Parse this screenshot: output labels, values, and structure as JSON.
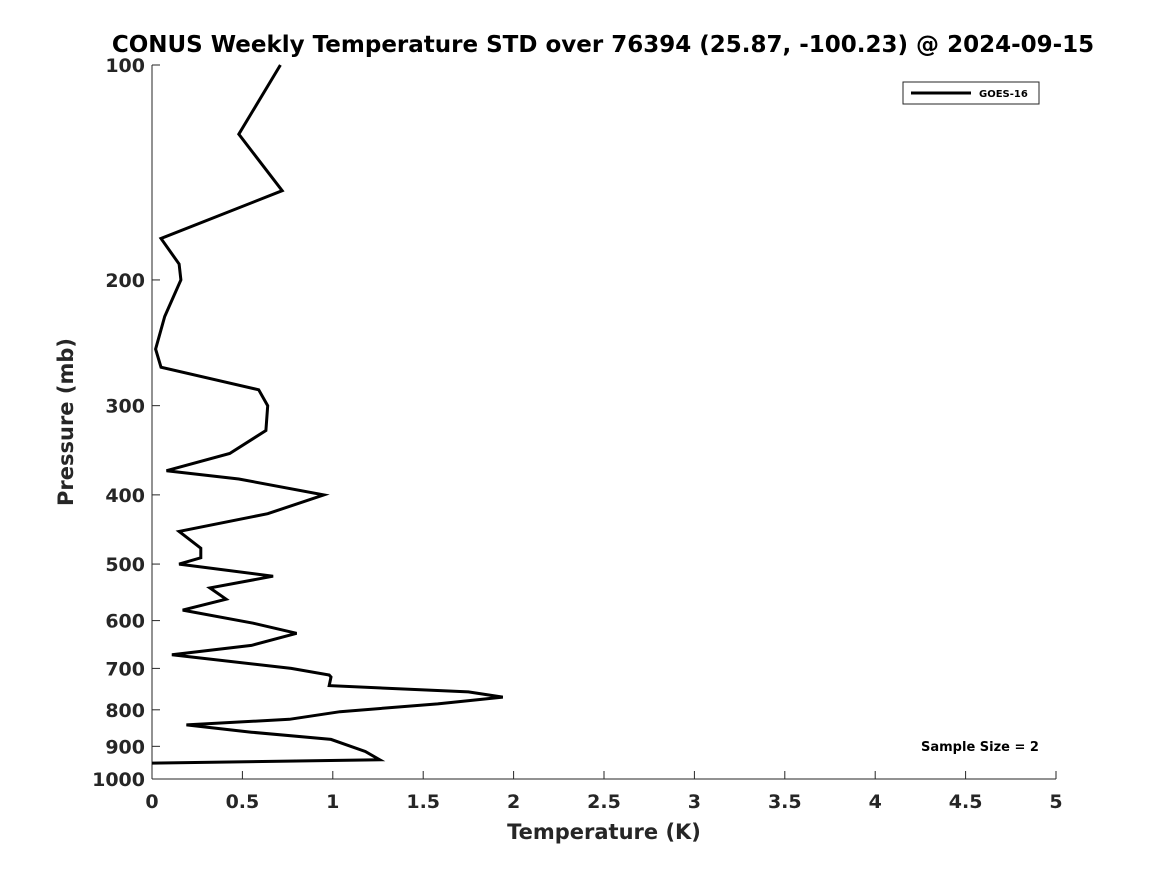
{
  "chart_data": {
    "type": "line",
    "title": "CONUS Weekly Temperature STD over 76394 (25.87, -100.23) @ 2024-09-15",
    "xlabel": "Temperature (K)",
    "ylabel": "Pressure (mb)",
    "xlim": [
      0,
      5
    ],
    "ylim": [
      100,
      1000
    ],
    "yscale": "log",
    "y_reversed": true,
    "x_ticks": [
      "0",
      "0.5",
      "1",
      "1.5",
      "2",
      "2.5",
      "3",
      "3.5",
      "4",
      "4.5",
      "5"
    ],
    "x_tick_values": [
      0,
      0.5,
      1,
      1.5,
      2,
      2.5,
      3,
      3.5,
      4,
      4.5,
      5
    ],
    "y_ticks": [
      "100",
      "200",
      "300",
      "400",
      "500",
      "600",
      "700",
      "800",
      "900",
      "1000"
    ],
    "y_tick_values": [
      100,
      200,
      300,
      400,
      500,
      600,
      700,
      800,
      900,
      1000
    ],
    "grid": false,
    "legend_position": "top-right",
    "series": [
      {
        "name": "GOES-16",
        "color": "#000000",
        "points": [
          [
            0.71,
            100
          ],
          [
            0.48,
            125
          ],
          [
            0.72,
            150
          ],
          [
            0.05,
            175
          ],
          [
            0.15,
            190
          ],
          [
            0.16,
            200
          ],
          [
            0.07,
            225
          ],
          [
            0.02,
            250
          ],
          [
            0.05,
            265
          ],
          [
            0.59,
            285
          ],
          [
            0.64,
            300
          ],
          [
            0.63,
            325
          ],
          [
            0.43,
            350
          ],
          [
            0.08,
            370
          ],
          [
            0.48,
            380
          ],
          [
            0.95,
            400
          ],
          [
            0.64,
            425
          ],
          [
            0.15,
            450
          ],
          [
            0.27,
            475
          ],
          [
            0.27,
            490
          ],
          [
            0.15,
            500
          ],
          [
            0.67,
            520
          ],
          [
            0.32,
            540
          ],
          [
            0.41,
            560
          ],
          [
            0.17,
            580
          ],
          [
            0.56,
            605
          ],
          [
            0.8,
            625
          ],
          [
            0.55,
            650
          ],
          [
            0.11,
            670
          ],
          [
            0.77,
            700
          ],
          [
            0.98,
            715
          ],
          [
            0.99,
            720
          ],
          [
            0.98,
            740
          ],
          [
            1.75,
            755
          ],
          [
            1.94,
            768
          ],
          [
            1.58,
            785
          ],
          [
            1.04,
            805
          ],
          [
            0.76,
            825
          ],
          [
            0.19,
            840
          ],
          [
            0.55,
            860
          ],
          [
            0.99,
            880
          ],
          [
            1.18,
            915
          ],
          [
            1.26,
            940
          ],
          [
            0.0,
            950
          ]
        ]
      }
    ],
    "annotations": [
      "Sample Size = 2"
    ]
  }
}
